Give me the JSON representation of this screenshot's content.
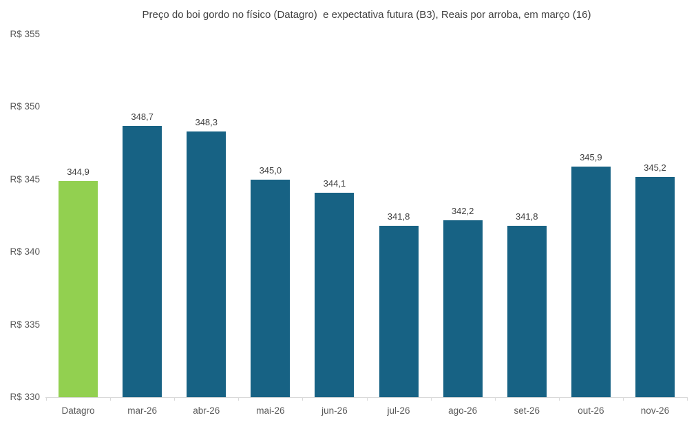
{
  "title": "Preço do boi gordo no físico (Datagro)  e expectativa futura (B3), Reais por arroba, em março (16)",
  "colors": {
    "highlight_bar": "#92d050",
    "default_bar": "#176284",
    "axis_line": "#d9d9d9",
    "axis_label_text": "#595959",
    "data_label_text": "#404040",
    "title_text": "#404040",
    "background": "#ffffff"
  },
  "chart_data": {
    "type": "bar",
    "title": "Preço do boi gordo no físico (Datagro)  e expectativa futura (B3), Reais por arroba, em março (16)",
    "categories": [
      "Datagro",
      "mar-26",
      "abr-26",
      "mai-26",
      "jun-26",
      "jul-26",
      "ago-26",
      "set-26",
      "out-26",
      "nov-26"
    ],
    "values": [
      344.9,
      348.7,
      348.3,
      345.0,
      344.1,
      341.8,
      342.2,
      341.8,
      345.9,
      345.2
    ],
    "value_labels": [
      "344,9",
      "348,7",
      "348,3",
      "345,0",
      "344,1",
      "341,8",
      "342,2",
      "341,8",
      "345,9",
      "345,2"
    ],
    "series_colors": [
      "highlight",
      "default",
      "default",
      "default",
      "default",
      "default",
      "default",
      "default",
      "default",
      "default"
    ],
    "xlabel": "",
    "ylabel": "",
    "ylim": [
      330,
      355
    ],
    "ytick_step": 5,
    "ytick_labels": [
      "R$ 330",
      "R$ 335",
      "R$ 340",
      "R$ 345",
      "R$ 350",
      "R$ 355"
    ],
    "grid": false,
    "legend": "none",
    "currency_unit": "Reais por arroba"
  }
}
